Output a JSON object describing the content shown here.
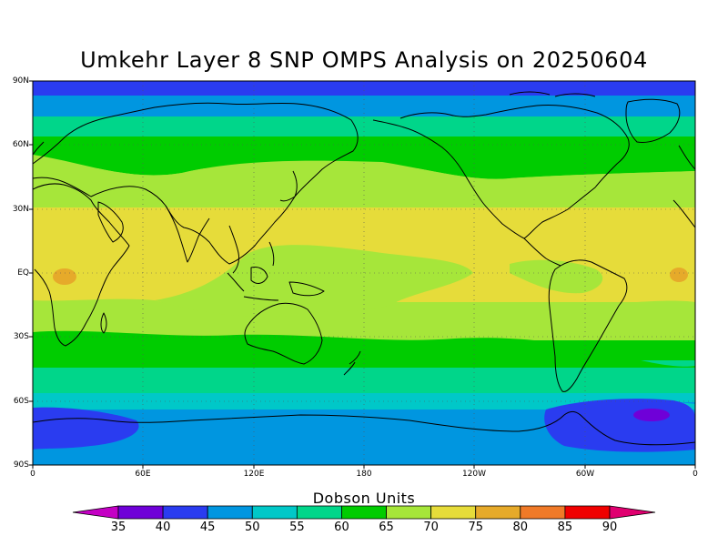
{
  "title": "Umkehr Layer 8 SNP OMPS Analysis on 20250604",
  "map": {
    "projection": "cylindrical-equidistant",
    "y_axis_labels": [
      "90N",
      "60N",
      "30N",
      "EQ",
      "30S",
      "60S",
      "90S"
    ],
    "x_axis_labels": [
      "0",
      "60E",
      "120E",
      "180",
      "120W",
      "60W",
      "0"
    ],
    "gridlines": "dotted"
  },
  "colorbar": {
    "title": "Dobson Units",
    "labels": [
      "35",
      "40",
      "45",
      "50",
      "55",
      "60",
      "65",
      "70",
      "75",
      "80",
      "85",
      "90"
    ],
    "colors": [
      "#8c00d4",
      "#6f00d8",
      "#2a3cf0",
      "#0096e0",
      "#00c8c8",
      "#00d68a",
      "#00cc00",
      "#a6e63a",
      "#e6dc3a",
      "#e6aa2a",
      "#f07a28",
      "#f00000",
      "#d80060"
    ],
    "under_color": "#c400c4",
    "over_color": "#e00070"
  },
  "chart_data": {
    "type": "heatmap",
    "title": "Umkehr Layer 8 SNP OMPS Analysis on 20250604",
    "units": "Dobson Units",
    "latitude_band_values": [
      {
        "lat_range": "80N-90N",
        "value_range": "40-45"
      },
      {
        "lat_range": "70N-80N",
        "value_range": "45-50"
      },
      {
        "lat_range": "60N-70N",
        "value_range": "55-60"
      },
      {
        "lat_range": "45N-60N",
        "value_range": "60-65"
      },
      {
        "lat_range": "30N-45N",
        "value_range": "65-70"
      },
      {
        "lat_range": "10N-30N",
        "value_range": "70-75"
      },
      {
        "lat_range": "10S-10N",
        "value_range": "65-75"
      },
      {
        "lat_range": "10S-30S",
        "value_range": "70-75"
      },
      {
        "lat_range": "30S-45S",
        "value_range": "60-65"
      },
      {
        "lat_range": "45S-55S",
        "value_range": "55-60"
      },
      {
        "lat_range": "55S-65S",
        "value_range": "50-55"
      },
      {
        "lat_range": "65S-90S",
        "value_range": "40-50"
      }
    ],
    "notable_features": [
      {
        "location": "near 20W 65S",
        "value_range": "35-40"
      },
      {
        "location": "near 15E EQ",
        "value_range": "75-80"
      },
      {
        "location": "near 5W EQ",
        "value_range": "75-80"
      }
    ],
    "color_levels": [
      35,
      40,
      45,
      50,
      55,
      60,
      65,
      70,
      75,
      80,
      85,
      90
    ]
  }
}
